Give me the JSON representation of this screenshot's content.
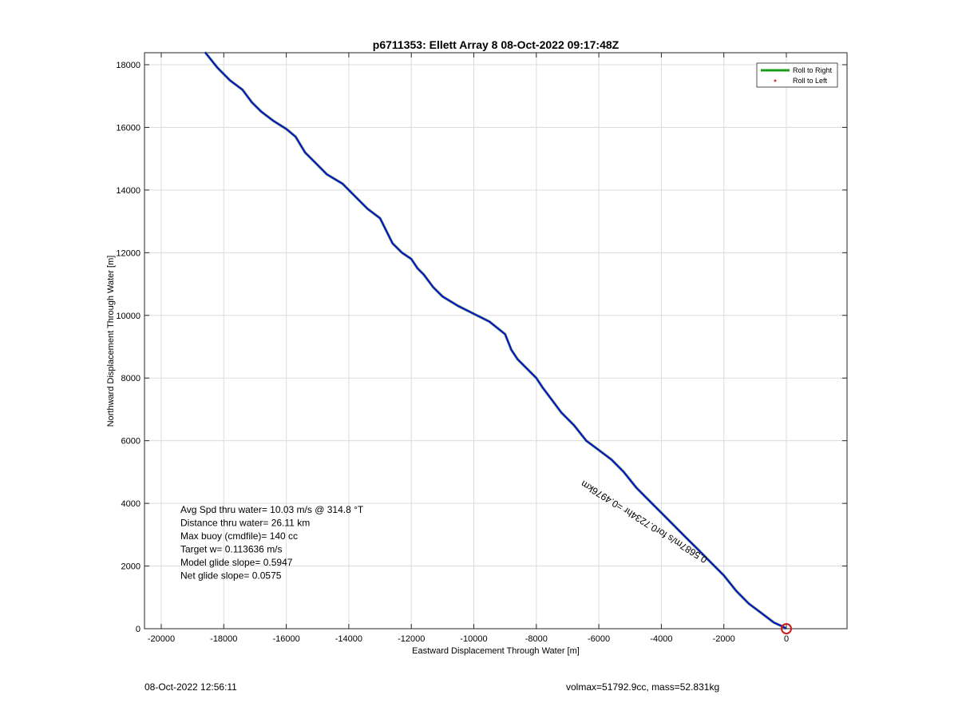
{
  "chart_data": {
    "type": "line",
    "title": "p6711353: Ellett Array 8 08-Oct-2022 09:17:48Z",
    "xlabel": "Eastward Displacement Through Water [m]",
    "ylabel": "Northward Displacement Through Water [m]",
    "xlim": [
      -21000,
      2000
    ],
    "ylim": [
      0,
      18400
    ],
    "xticks": [
      -20000,
      -18000,
      -16000,
      -14000,
      -12000,
      -10000,
      -8000,
      -6000,
      -4000,
      -2000,
      0
    ],
    "yticks": [
      0,
      2000,
      4000,
      6000,
      8000,
      10000,
      12000,
      14000,
      16000,
      18000
    ],
    "grid": true,
    "legend_position": "top-right",
    "legend": [
      {
        "label": "Roll to Right",
        "color": "#1a9c1a",
        "marker": "line"
      },
      {
        "label": "Roll to Left",
        "color": "#e53030",
        "marker": "dot"
      }
    ],
    "series": [
      {
        "color": "#1010c0",
        "x": [
          -18600,
          -18200,
          -17800,
          -17400,
          -17100,
          -16800,
          -16400,
          -16000,
          -15700,
          -15400,
          -15000,
          -14700,
          -14200,
          -13800,
          -13400,
          -13000,
          -12800,
          -12600,
          -12300,
          -12000,
          -11800,
          -11600,
          -11300,
          -11000,
          -10500,
          -10000,
          -9500,
          -9000,
          -8800,
          -8600,
          -8300,
          -8000,
          -7800,
          -7500,
          -7200,
          -6800,
          -6400,
          -6000,
          -5600,
          -5200,
          -4800,
          -4400,
          -4000,
          -3600,
          -3200,
          -2800,
          -2400,
          -2000,
          -1600,
          -1200,
          -800,
          -400,
          -100,
          0
        ],
        "y": [
          18400,
          17900,
          17500,
          17200,
          16800,
          16500,
          16200,
          15950,
          15700,
          15200,
          14800,
          14500,
          14200,
          13800,
          13400,
          13100,
          12700,
          12300,
          12000,
          11800,
          11500,
          11300,
          10900,
          10600,
          10300,
          10050,
          9800,
          9400,
          8900,
          8600,
          8300,
          8000,
          7700,
          7300,
          6900,
          6500,
          6000,
          5700,
          5400,
          5000,
          4500,
          4100,
          3700,
          3300,
          2900,
          2500,
          2100,
          1700,
          1200,
          800,
          500,
          200,
          60,
          0
        ]
      }
    ],
    "annotations": [
      {
        "text": "Avg Spd thru water= 10.03 m/s @ 314.8 °T"
      },
      {
        "text": "Distance thru water= 26.11 km"
      },
      {
        "text": "Max buoy (cmdfile)= 140 cc"
      },
      {
        "text": "Target w= 0.113636 m/s"
      },
      {
        "text": "Model glide slope= 0.5947"
      },
      {
        "text": "Net glide slope= 0.0575"
      }
    ],
    "path_label": {
      "text": "0.5687m/s for0.7234hr =0.4976km",
      "x": -4500,
      "y": 3500
    }
  },
  "footer": {
    "left": "08-Oct-2022 12:56:11",
    "right": "volmax=51792.9cc, mass=52.831kg"
  }
}
